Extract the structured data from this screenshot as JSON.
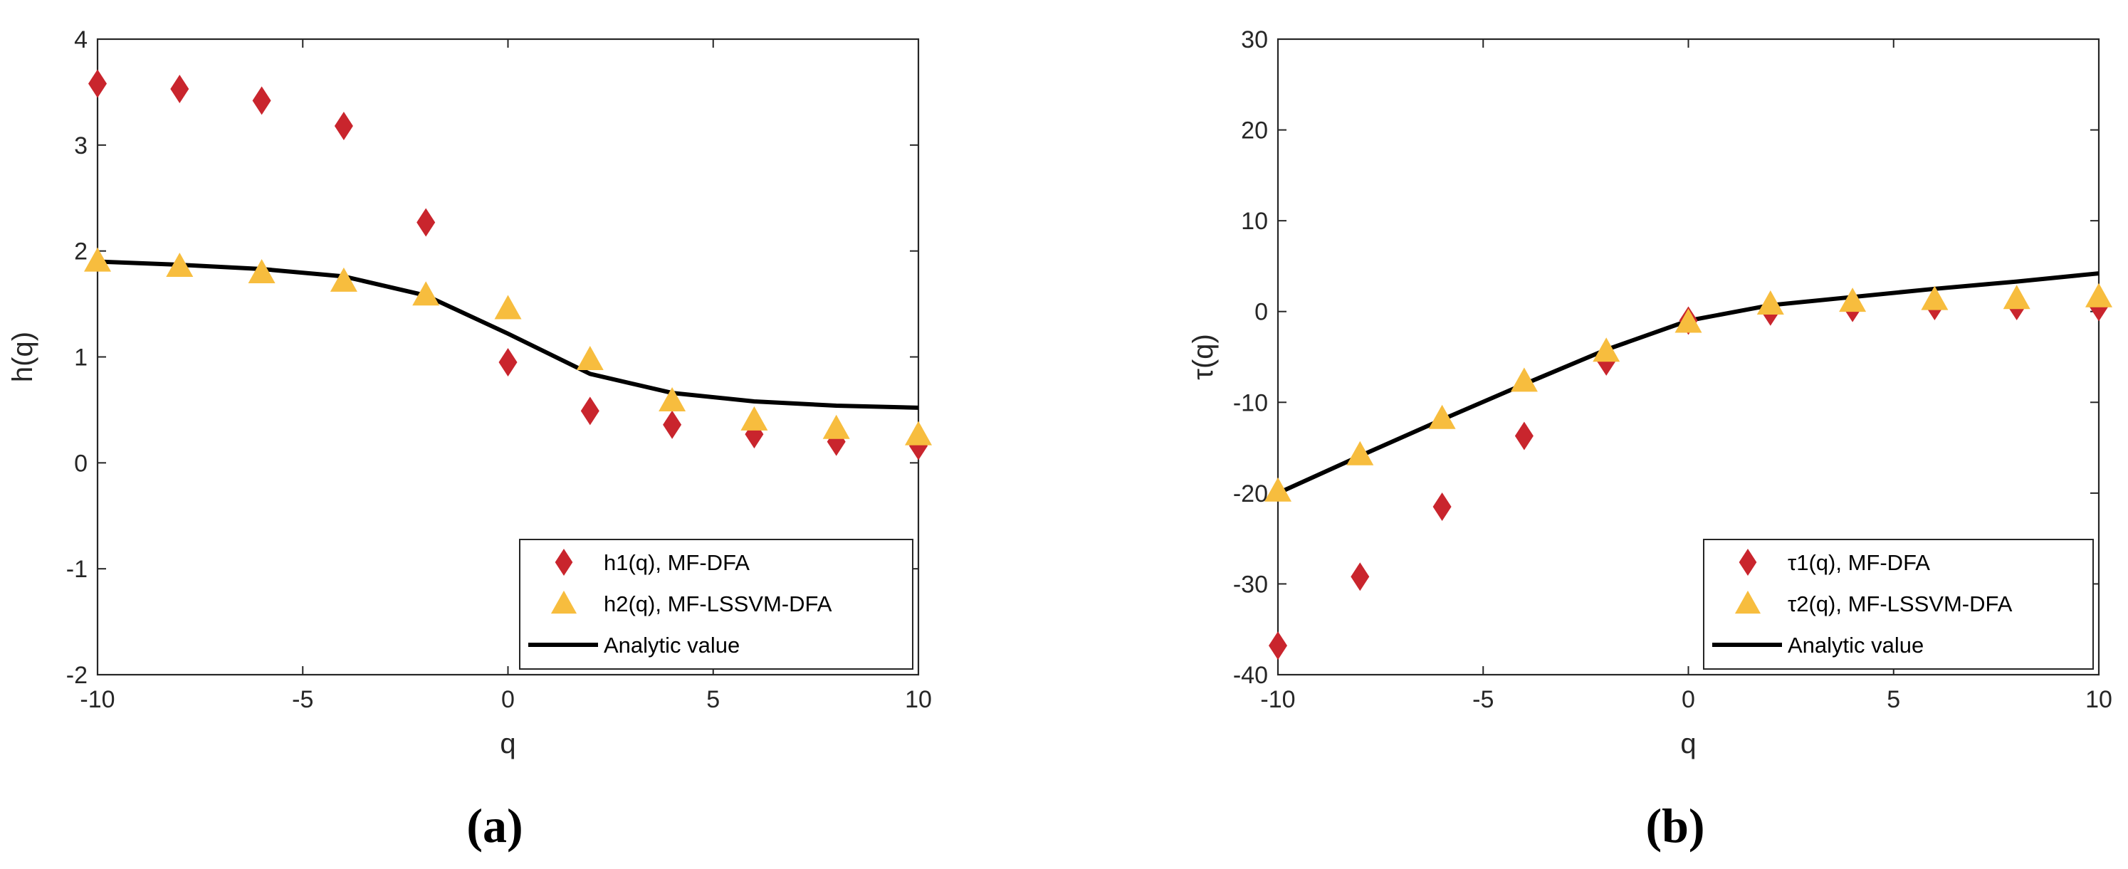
{
  "chart_data": [
    {
      "type": "scatter",
      "panel_label": "(a)",
      "xlabel": "q",
      "ylabel": "h(q)",
      "xlim": [
        -10,
        10
      ],
      "ylim": [
        -2,
        4
      ],
      "xticks": [
        -10,
        -5,
        0,
        5,
        10
      ],
      "yticks": [
        -2,
        -1,
        0,
        1,
        2,
        3,
        4
      ],
      "legend_position": "bottom-right",
      "series": [
        {
          "name": "h1(q), MF-DFA",
          "kind": "diamond",
          "color": "#c9252d",
          "x": [
            -10,
            -8,
            -6,
            -4,
            -2,
            0,
            2,
            4,
            6,
            8,
            10
          ],
          "y": [
            3.58,
            3.53,
            3.42,
            3.18,
            2.27,
            0.95,
            0.49,
            0.36,
            0.27,
            0.2,
            0.16
          ]
        },
        {
          "name": "h2(q), MF-LSSVM-DFA",
          "kind": "triangle",
          "color": "#f7bd3e",
          "x": [
            -10,
            -8,
            -6,
            -4,
            -2,
            0,
            2,
            4,
            6,
            8,
            10
          ],
          "y": [
            1.92,
            1.87,
            1.81,
            1.73,
            1.6,
            1.47,
            0.99,
            0.6,
            0.42,
            0.34,
            0.28
          ]
        },
        {
          "name": "Analytic value",
          "kind": "line",
          "color": "#000000",
          "x": [
            -10,
            -8,
            -6,
            -4,
            -2,
            0,
            2,
            4,
            6,
            8,
            10
          ],
          "y": [
            1.9,
            1.87,
            1.83,
            1.76,
            1.58,
            1.22,
            0.84,
            0.66,
            0.58,
            0.54,
            0.52
          ]
        }
      ]
    },
    {
      "type": "scatter",
      "panel_label": "(b)",
      "xlabel": "q",
      "ylabel": "τ(q)",
      "xlim": [
        -10,
        10
      ],
      "ylim": [
        -40,
        30
      ],
      "xticks": [
        -10,
        -5,
        0,
        5,
        10
      ],
      "yticks": [
        -40,
        -30,
        -20,
        -10,
        0,
        10,
        20,
        30
      ],
      "legend_position": "bottom-right",
      "series": [
        {
          "name": "τ1(q), MF-DFA",
          "kind": "diamond",
          "color": "#c9252d",
          "x": [
            -10,
            -8,
            -6,
            -4,
            -2,
            0,
            2,
            4,
            6,
            8,
            10
          ],
          "y": [
            -36.8,
            -29.2,
            -21.5,
            -13.7,
            -5.5,
            -1.0,
            0.0,
            0.4,
            0.6,
            0.6,
            0.5
          ]
        },
        {
          "name": "τ2(q), MF-LSSVM-DFA",
          "kind": "triangle",
          "color": "#f7bd3e",
          "x": [
            -10,
            -8,
            -6,
            -4,
            -2,
            0,
            2,
            4,
            6,
            8,
            10
          ],
          "y": [
            -19.6,
            -15.6,
            -11.6,
            -7.5,
            -4.2,
            -1.0,
            1.0,
            1.3,
            1.5,
            1.6,
            1.8
          ]
        },
        {
          "name": "Analytic value",
          "kind": "line",
          "color": "#000000",
          "x": [
            -10,
            -8,
            -6,
            -4,
            -2,
            0,
            2,
            4,
            6,
            8,
            10
          ],
          "y": [
            -20.0,
            -15.9,
            -11.9,
            -8.0,
            -4.2,
            -1.0,
            0.7,
            1.6,
            2.5,
            3.3,
            4.2
          ]
        }
      ]
    }
  ]
}
